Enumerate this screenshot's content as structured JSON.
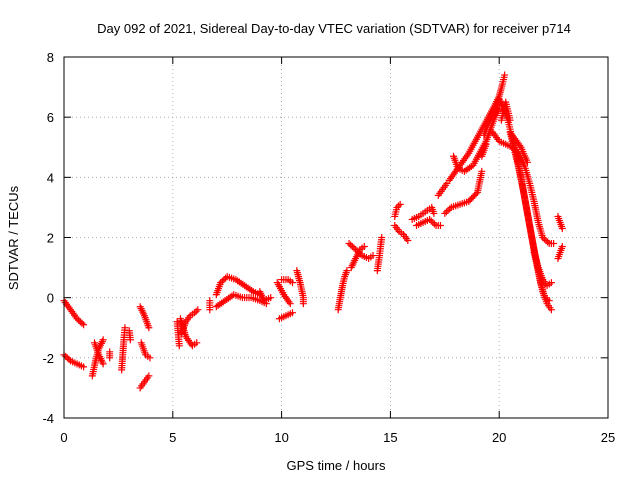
{
  "chart_data": {
    "type": "scatter",
    "title": "Day 092 of 2021, Sidereal Day-to-day VTEC variation (SDTVAR) for receiver p714",
    "xlabel": "GPS time / hours",
    "ylabel": "SDTVAR / TECUs",
    "xlim": [
      0,
      25
    ],
    "ylim": [
      -4,
      8
    ],
    "xticks": [
      0,
      5,
      10,
      15,
      20,
      25
    ],
    "yticks": [
      -4,
      -2,
      0,
      2,
      4,
      6,
      8
    ],
    "grid": true,
    "marker": "plus",
    "color": "#ff0000",
    "tracks": [
      {
        "name": "track-01",
        "points": [
          [
            0.0,
            -0.1
          ],
          [
            0.3,
            -0.4
          ],
          [
            0.6,
            -0.7
          ],
          [
            0.9,
            -0.9
          ]
        ]
      },
      {
        "name": "track-02",
        "points": [
          [
            0.0,
            -1.9
          ],
          [
            0.3,
            -2.1
          ],
          [
            0.6,
            -2.2
          ],
          [
            0.9,
            -2.3
          ]
        ]
      },
      {
        "name": "track-03",
        "points": [
          [
            1.3,
            -2.6
          ],
          [
            1.45,
            -2.1
          ],
          [
            1.6,
            -1.7
          ],
          [
            1.8,
            -1.4
          ]
        ]
      },
      {
        "name": "track-04",
        "points": [
          [
            1.4,
            -1.5
          ],
          [
            1.6,
            -1.9
          ],
          [
            1.8,
            -2.2
          ]
        ]
      },
      {
        "name": "track-05",
        "points": [
          [
            2.1,
            -1.8
          ],
          [
            2.1,
            -2.0
          ]
        ]
      },
      {
        "name": "track-06",
        "points": [
          [
            2.65,
            -2.4
          ],
          [
            2.7,
            -1.9
          ],
          [
            2.75,
            -1.4
          ],
          [
            2.8,
            -1.0
          ]
        ]
      },
      {
        "name": "track-07",
        "points": [
          [
            3.0,
            -1.1
          ],
          [
            3.05,
            -1.4
          ]
        ]
      },
      {
        "name": "track-08",
        "points": [
          [
            3.5,
            -3.0
          ],
          [
            3.7,
            -2.8
          ],
          [
            3.9,
            -2.6
          ]
        ]
      },
      {
        "name": "track-09",
        "points": [
          [
            3.55,
            -1.5
          ],
          [
            3.75,
            -1.9
          ],
          [
            3.95,
            -2.0
          ]
        ]
      },
      {
        "name": "track-10",
        "points": [
          [
            3.5,
            -0.3
          ],
          [
            3.7,
            -0.6
          ],
          [
            3.9,
            -1.0
          ]
        ]
      },
      {
        "name": "track-11",
        "points": [
          [
            5.2,
            -0.8
          ],
          [
            5.3,
            -1.6
          ]
        ]
      },
      {
        "name": "track-12",
        "points": [
          [
            5.35,
            -0.7
          ],
          [
            5.6,
            -1.3
          ],
          [
            5.9,
            -1.6
          ],
          [
            6.1,
            -1.5
          ]
        ]
      },
      {
        "name": "track-13",
        "points": [
          [
            5.4,
            -1.2
          ],
          [
            5.6,
            -0.8
          ],
          [
            5.8,
            -0.6
          ],
          [
            6.0,
            -0.5
          ],
          [
            6.15,
            -0.4
          ]
        ]
      },
      {
        "name": "track-14",
        "points": [
          [
            6.7,
            -0.1
          ],
          [
            6.7,
            -0.4
          ]
        ]
      },
      {
        "name": "track-15",
        "points": [
          [
            7.0,
            0.1
          ],
          [
            7.2,
            0.5
          ],
          [
            7.5,
            0.7
          ],
          [
            7.9,
            0.6
          ],
          [
            8.3,
            0.4
          ],
          [
            8.7,
            0.2
          ],
          [
            9.0,
            0.1
          ]
        ]
      },
      {
        "name": "track-16",
        "points": [
          [
            7.0,
            -0.3
          ],
          [
            7.4,
            -0.1
          ],
          [
            7.8,
            0.1
          ],
          [
            8.2,
            0.0
          ],
          [
            8.6,
            0.0
          ],
          [
            9.0,
            -0.1
          ],
          [
            9.3,
            -0.2
          ]
        ]
      },
      {
        "name": "track-17",
        "points": [
          [
            9.0,
            0.2
          ],
          [
            9.2,
            -0.1
          ],
          [
            9.5,
            0.0
          ]
        ]
      },
      {
        "name": "track-18",
        "points": [
          [
            9.9,
            -0.7
          ],
          [
            10.2,
            -0.6
          ],
          [
            10.5,
            -0.5
          ]
        ]
      },
      {
        "name": "track-19",
        "points": [
          [
            9.8,
            0.5
          ],
          [
            10.1,
            0.1
          ],
          [
            10.4,
            -0.2
          ]
        ]
      },
      {
        "name": "track-20",
        "points": [
          [
            10.0,
            0.6
          ],
          [
            10.3,
            0.6
          ],
          [
            10.5,
            0.5
          ]
        ]
      },
      {
        "name": "track-21",
        "points": [
          [
            10.7,
            0.9
          ],
          [
            10.85,
            0.5
          ],
          [
            11.0,
            0.0
          ],
          [
            11.0,
            -0.2
          ]
        ]
      },
      {
        "name": "track-22",
        "points": [
          [
            12.6,
            -0.4
          ],
          [
            12.7,
            0.0
          ],
          [
            12.8,
            0.4
          ],
          [
            12.9,
            0.7
          ],
          [
            13.0,
            0.9
          ]
        ]
      },
      {
        "name": "track-23",
        "points": [
          [
            13.2,
            1.0
          ],
          [
            13.4,
            1.3
          ],
          [
            13.6,
            1.6
          ],
          [
            13.8,
            1.7
          ]
        ]
      },
      {
        "name": "track-24",
        "points": [
          [
            13.1,
            1.8
          ],
          [
            13.4,
            1.6
          ],
          [
            13.7,
            1.4
          ],
          [
            14.0,
            1.3
          ],
          [
            14.2,
            1.4
          ]
        ]
      },
      {
        "name": "track-25",
        "points": [
          [
            14.4,
            0.9
          ],
          [
            14.5,
            1.4
          ],
          [
            14.6,
            2.0
          ]
        ]
      },
      {
        "name": "track-26",
        "points": [
          [
            15.2,
            2.7
          ],
          [
            15.3,
            3.0
          ],
          [
            15.45,
            3.1
          ]
        ]
      },
      {
        "name": "track-27",
        "points": [
          [
            15.2,
            2.4
          ],
          [
            15.4,
            2.2
          ],
          [
            15.6,
            2.1
          ],
          [
            15.8,
            1.9
          ]
        ]
      },
      {
        "name": "track-28",
        "points": [
          [
            16.0,
            2.6
          ],
          [
            16.3,
            2.7
          ],
          [
            16.5,
            2.8
          ],
          [
            16.7,
            2.9
          ],
          [
            16.9,
            3.0
          ],
          [
            17.0,
            2.8
          ]
        ]
      },
      {
        "name": "track-29",
        "points": [
          [
            16.2,
            2.4
          ],
          [
            16.5,
            2.5
          ],
          [
            16.8,
            2.6
          ],
          [
            17.1,
            2.4
          ],
          [
            17.3,
            2.4
          ]
        ]
      },
      {
        "name": "track-30",
        "points": [
          [
            17.2,
            3.4
          ],
          [
            17.4,
            3.6
          ],
          [
            17.6,
            3.8
          ]
        ]
      },
      {
        "name": "track-31",
        "points": [
          [
            17.5,
            2.8
          ],
          [
            17.8,
            3.0
          ],
          [
            18.2,
            3.1
          ],
          [
            18.6,
            3.2
          ],
          [
            19.0,
            3.5
          ],
          [
            19.2,
            4.2
          ]
        ]
      },
      {
        "name": "track-32",
        "points": [
          [
            17.7,
            3.9
          ],
          [
            18.0,
            4.2
          ],
          [
            18.3,
            4.5
          ],
          [
            18.6,
            4.8
          ],
          [
            18.9,
            5.2
          ],
          [
            19.2,
            5.6
          ],
          [
            19.5,
            6.0
          ],
          [
            19.8,
            6.4
          ],
          [
            20.0,
            6.7
          ],
          [
            20.15,
            7.1
          ],
          [
            20.25,
            7.4
          ]
        ]
      },
      {
        "name": "track-33",
        "points": [
          [
            17.9,
            4.7
          ],
          [
            18.1,
            4.3
          ],
          [
            18.4,
            4.2
          ],
          [
            18.8,
            4.4
          ],
          [
            19.1,
            4.8
          ],
          [
            19.4,
            5.2
          ],
          [
            19.6,
            5.6
          ],
          [
            19.8,
            6.0
          ],
          [
            20.0,
            6.3
          ]
        ]
      },
      {
        "name": "track-34",
        "points": [
          [
            19.3,
            5.4
          ],
          [
            19.5,
            5.8
          ],
          [
            19.8,
            6.2
          ],
          [
            20.0,
            6.6
          ]
        ]
      },
      {
        "name": "track-35",
        "points": [
          [
            19.2,
            4.7
          ],
          [
            19.4,
            5.1
          ]
        ]
      },
      {
        "name": "track-36",
        "points": [
          [
            20.1,
            5.9
          ],
          [
            20.3,
            6.5
          ],
          [
            20.5,
            5.9
          ]
        ]
      },
      {
        "name": "track-37",
        "points": [
          [
            19.7,
            5.5
          ],
          [
            20.0,
            5.2
          ],
          [
            20.3,
            5.1
          ],
          [
            20.6,
            5.0
          ],
          [
            20.9,
            4.8
          ],
          [
            21.2,
            4.3
          ],
          [
            21.4,
            3.8
          ],
          [
            21.6,
            3.2
          ],
          [
            21.8,
            2.5
          ],
          [
            22.0,
            2.0
          ],
          [
            22.3,
            1.8
          ],
          [
            22.5,
            1.8
          ]
        ]
      },
      {
        "name": "track-38",
        "points": [
          [
            20.0,
            6.6
          ],
          [
            20.2,
            6.3
          ],
          [
            20.4,
            5.9
          ],
          [
            20.6,
            5.3
          ],
          [
            20.8,
            4.7
          ],
          [
            21.0,
            4.0
          ],
          [
            21.2,
            3.2
          ],
          [
            21.4,
            2.4
          ],
          [
            21.6,
            1.6
          ],
          [
            21.8,
            0.9
          ],
          [
            22.0,
            0.2
          ],
          [
            22.2,
            -0.2
          ],
          [
            22.4,
            -0.4
          ]
        ]
      },
      {
        "name": "track-39",
        "points": [
          [
            20.5,
            5.5
          ],
          [
            20.7,
            4.9
          ],
          [
            20.9,
            4.3
          ],
          [
            21.1,
            3.6
          ],
          [
            21.3,
            2.8
          ],
          [
            21.5,
            2.0
          ],
          [
            21.7,
            1.2
          ],
          [
            21.9,
            0.5
          ],
          [
            22.1,
            0.0
          ],
          [
            22.3,
            -0.1
          ]
        ]
      },
      {
        "name": "track-40",
        "points": [
          [
            20.6,
            5.4
          ],
          [
            21.0,
            5.0
          ],
          [
            21.3,
            4.5
          ]
        ]
      },
      {
        "name": "track-41",
        "points": [
          [
            21.6,
            1.5
          ],
          [
            21.8,
            1.0
          ],
          [
            22.0,
            0.6
          ],
          [
            22.2,
            0.4
          ],
          [
            22.4,
            0.5
          ]
        ]
      },
      {
        "name": "track-42",
        "points": [
          [
            22.7,
            2.7
          ],
          [
            22.8,
            2.5
          ],
          [
            22.9,
            2.3
          ]
        ]
      },
      {
        "name": "track-43",
        "points": [
          [
            22.7,
            1.3
          ],
          [
            22.8,
            1.5
          ],
          [
            22.9,
            1.7
          ]
        ]
      }
    ]
  }
}
